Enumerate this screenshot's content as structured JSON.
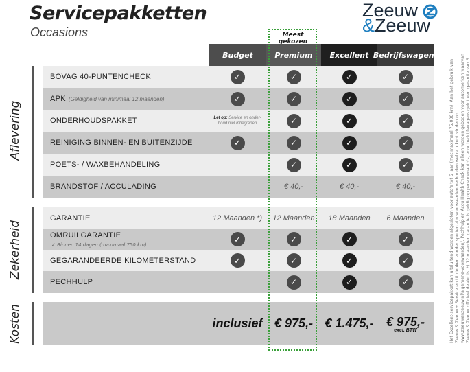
{
  "header": {
    "title": "Servicepakketten",
    "subtitle": "Occasions",
    "logo": "Zeeuw & Zeeuw",
    "logo_line1": "Zeeuw",
    "logo_line2_amp": "&",
    "logo_line2": "Zeeuw",
    "highlight_label": "Meest gekozen"
  },
  "colors": {
    "highlight": "#3aa03a",
    "check": "#4a4a4a",
    "check_excellent": "#1e1e1e",
    "row_light": "#ededed",
    "row_dark": "#c9c9c9"
  },
  "columns": [
    {
      "label": "Budget",
      "color": "#4d4d4d"
    },
    {
      "label": "Premium",
      "color": "#575757"
    },
    {
      "label": "Excellent",
      "color": "#1f1f1f"
    },
    {
      "label": "Bedrijfswagens",
      "color": "#3a3a3a"
    }
  ],
  "sections": {
    "aflevering": "Aflevering",
    "zekerheid": "Zekerheid",
    "kosten": "Kosten"
  },
  "aflevering": [
    {
      "label": "BOVAG 40-PUNTENCHECK",
      "cells": [
        "check",
        "check",
        "check",
        "check"
      ]
    },
    {
      "label": "APK",
      "note": "(Geldigheid van minimaal 12 maanden)",
      "cells": [
        "check",
        "check",
        "check",
        "check"
      ]
    },
    {
      "label": "ONDERHOUDSPAKKET",
      "cells": [
        "",
        "check",
        "check",
        "check"
      ],
      "budget_note_bold": "Let op:",
      "budget_note": "Service en onder-houd niet inbegrepen"
    },
    {
      "label": "REINIGING BINNEN- EN BUITENZIJDE",
      "cells": [
        "check",
        "check",
        "check",
        "check"
      ]
    },
    {
      "label": "POETS- / WAXBEHANDELING",
      "cells": [
        "",
        "check",
        "check",
        "check"
      ]
    },
    {
      "label": "BRANDSTOF / ACCULADING",
      "cells": [
        "",
        "€ 40,-",
        "€ 40,-",
        "€ 40,-"
      ]
    }
  ],
  "zekerheid": [
    {
      "label": "GARANTIE",
      "cells": [
        "12 Maanden *)",
        "12 Maanden",
        "18 Maanden",
        "6 Maanden"
      ]
    },
    {
      "label": "OMRUILGARANTIE",
      "sub": "✓  Binnen 14 dagen (maximaal 750 km)",
      "cells": [
        "check",
        "check",
        "check",
        "check"
      ]
    },
    {
      "label": "GEGARANDEERDE KILOMETERSTAND",
      "cells": [
        "check",
        "check",
        "check",
        "check"
      ]
    },
    {
      "label": "PECHHULP",
      "cells": [
        "",
        "check",
        "check",
        "check"
      ]
    }
  ],
  "kosten": {
    "prices": [
      "inclusief",
      "€ 975,-",
      "€ 1.475,-",
      "€ 975,-"
    ],
    "bedrijf_note": "excl. BTW"
  },
  "footnote": "Het Excellent-servicepakket kan uitsluitend worden afgesloten voor auto's tot 5 jaar (met maximaal 75.000 km). Aan het gebruik van Zeeuw & Zeeuw+ Service en Uitdeuken zonder spuiten zijn voorwaarden verbonden welke u kunt vinden op www.zeeuwenzeeuw.nl/algemene-voorwaarden/. Pechhulp en Accu Health Check kan alleen worden geboden voor automerken waarvan Zeeuw & Zeeuw officieel dealer is. *) 12 maanden garantie is geldig op personenauto's, voor bedrijfswagens geldt een garantie van 6 maanden."
}
